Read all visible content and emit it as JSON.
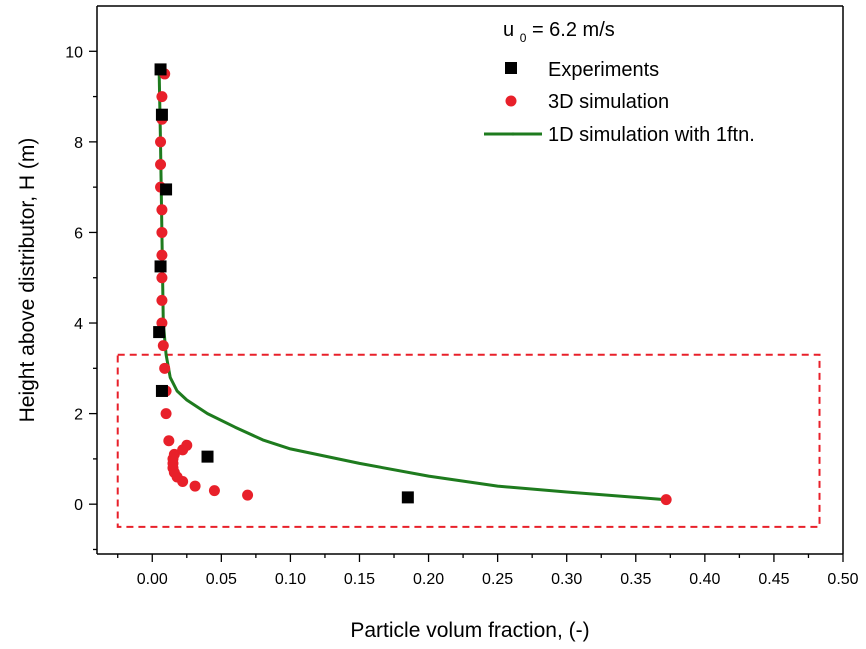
{
  "chart_data": {
    "type": "scatter",
    "title": "",
    "xlabel": "Particle volum fraction, (-)",
    "ylabel": "Height above distributor, H (m)",
    "xlim": [
      -0.04,
      0.5
    ],
    "ylim": [
      -1.1,
      11
    ],
    "x_ticks": [
      0.0,
      0.05,
      0.1,
      0.15,
      0.2,
      0.25,
      0.3,
      0.35,
      0.4,
      0.45,
      0.5
    ],
    "x_tick_labels": [
      "0.00",
      "0.05",
      "0.10",
      "0.15",
      "0.20",
      "0.25",
      "0.30",
      "0.35",
      "0.40",
      "0.45",
      "0.50"
    ],
    "y_ticks": [
      0,
      2,
      4,
      6,
      8,
      10
    ],
    "y_tick_labels": [
      "0",
      "2",
      "4",
      "6",
      "8",
      "10"
    ],
    "annotation": {
      "u_symbol": "u",
      "u_subscript": "0",
      "u_value": "= 6.2 m/s"
    },
    "highlight_region": {
      "x": [
        -0.025,
        0.483
      ],
      "y": [
        -0.5,
        3.3
      ],
      "color": "#e8202a",
      "style": "dashed"
    },
    "series": [
      {
        "name": "Experiments",
        "kind": "scatter",
        "marker": "square",
        "color": "#000000",
        "points": [
          [
            0.006,
            9.6
          ],
          [
            0.007,
            8.6
          ],
          [
            0.01,
            6.95
          ],
          [
            0.006,
            5.25
          ],
          [
            0.005,
            3.8
          ],
          [
            0.007,
            2.5
          ],
          [
            0.04,
            1.05
          ],
          [
            0.185,
            0.15
          ]
        ]
      },
      {
        "name": "3D simulation",
        "kind": "scatter",
        "marker": "circle",
        "color": "#e8202a",
        "points": [
          [
            0.009,
            9.5
          ],
          [
            0.007,
            9.0
          ],
          [
            0.007,
            8.5
          ],
          [
            0.006,
            8.0
          ],
          [
            0.006,
            7.5
          ],
          [
            0.006,
            7.0
          ],
          [
            0.007,
            6.5
          ],
          [
            0.007,
            6.0
          ],
          [
            0.007,
            5.5
          ],
          [
            0.007,
            5.0
          ],
          [
            0.007,
            4.5
          ],
          [
            0.007,
            4.0
          ],
          [
            0.008,
            3.5
          ],
          [
            0.009,
            3.0
          ],
          [
            0.01,
            2.5
          ],
          [
            0.01,
            2.0
          ],
          [
            0.012,
            1.4
          ],
          [
            0.016,
            1.1
          ],
          [
            0.015,
            1.0
          ],
          [
            0.015,
            0.9
          ],
          [
            0.015,
            0.8
          ],
          [
            0.016,
            0.7
          ],
          [
            0.018,
            0.6
          ],
          [
            0.022,
            0.5
          ],
          [
            0.031,
            0.4
          ],
          [
            0.045,
            0.3
          ],
          [
            0.069,
            0.2
          ],
          [
            0.372,
            0.1
          ],
          [
            0.025,
            1.3
          ],
          [
            0.022,
            1.2
          ]
        ]
      },
      {
        "name": "1D simulation with 1ftn.",
        "kind": "line",
        "color": "#1e7b1e",
        "points": [
          [
            0.005,
            9.5
          ],
          [
            0.006,
            8.0
          ],
          [
            0.007,
            6.0
          ],
          [
            0.008,
            4.0
          ],
          [
            0.01,
            3.3
          ],
          [
            0.013,
            2.8
          ],
          [
            0.018,
            2.5
          ],
          [
            0.025,
            2.3
          ],
          [
            0.04,
            2.0
          ],
          [
            0.06,
            1.7
          ],
          [
            0.08,
            1.42
          ],
          [
            0.1,
            1.22
          ],
          [
            0.15,
            0.9
          ],
          [
            0.2,
            0.62
          ],
          [
            0.25,
            0.4
          ],
          [
            0.3,
            0.27
          ],
          [
            0.372,
            0.1
          ]
        ]
      }
    ],
    "legend_position": "top-right",
    "grid": false
  }
}
